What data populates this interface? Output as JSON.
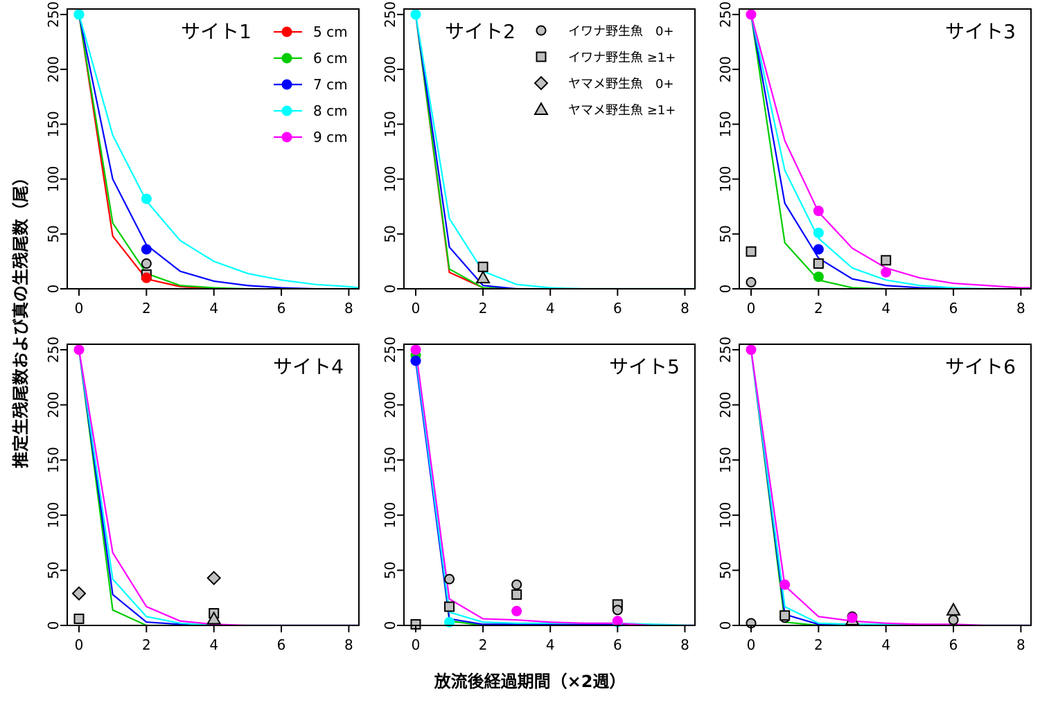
{
  "chart_data": {
    "type": "line",
    "xlabel": "放流後経過期間（×2週）",
    "ylabel": "推定生残尾数および真の生残尾数（尾）",
    "xlim": [
      0,
      8.3
    ],
    "ylim": [
      0,
      255
    ],
    "xticks": [
      "0",
      "2",
      "4",
      "6",
      "8"
    ],
    "yticks": [
      "0",
      "50",
      "100",
      "150",
      "200",
      "250"
    ],
    "size_series": [
      {
        "name": "5 cm",
        "color": "#ff0000"
      },
      {
        "name": "6 cm",
        "color": "#00cc00"
      },
      {
        "name": "7 cm",
        "color": "#0000ff"
      },
      {
        "name": "8 cm",
        "color": "#00ffff"
      },
      {
        "name": "9 cm",
        "color": "#ff00ff"
      }
    ],
    "wild_legend": [
      {
        "name": "イワナ野生魚　0+",
        "shape": "circle"
      },
      {
        "name": "イワナ野生魚 ≥1+",
        "shape": "square"
      },
      {
        "name": "ヤマメ野生魚　0+",
        "shape": "diamond"
      },
      {
        "name": "ヤマメ野生魚 ≥1+",
        "shape": "triangle"
      }
    ],
    "panels": [
      {
        "title": "サイト1",
        "series": [
          {
            "name": "5 cm",
            "x": [
              0,
              1,
              2,
              3,
              4
            ],
            "y": [
              250,
              48,
              9,
              2,
              0
            ]
          },
          {
            "name": "6 cm",
            "x": [
              0,
              1,
              2,
              3,
              4,
              5
            ],
            "y": [
              250,
              60,
              14,
              3,
              1,
              0
            ]
          },
          {
            "name": "7 cm",
            "x": [
              0,
              1,
              2,
              3,
              4,
              5,
              6,
              7,
              8.3
            ],
            "y": [
              250,
              100,
              40,
              16,
              7,
              3,
              1,
              0,
              0
            ]
          },
          {
            "name": "8 cm",
            "x": [
              0,
              1,
              2,
              3,
              4,
              5,
              6,
              7,
              8,
              8.3
            ],
            "y": [
              250,
              140,
              80,
              44,
              25,
              14,
              8,
              4,
              2,
              1
            ]
          }
        ],
        "points": [
          {
            "series": "5 cm",
            "x": 2,
            "y": 10
          },
          {
            "series": "6 cm",
            "x": 0,
            "y": 250
          },
          {
            "series": "7 cm",
            "x": 2,
            "y": 36
          },
          {
            "series": "8 cm",
            "x": 0,
            "y": 250
          },
          {
            "series": "8 cm",
            "x": 2,
            "y": 82
          }
        ],
        "wild": [
          {
            "shape": "circle",
            "x": 2,
            "y": 23
          },
          {
            "shape": "square",
            "x": 2,
            "y": 13
          }
        ]
      },
      {
        "title": "サイト2",
        "series": [
          {
            "name": "5 cm",
            "x": [
              0,
              1,
              2,
              3
            ],
            "y": [
              250,
              15,
              1,
              0
            ]
          },
          {
            "name": "6 cm",
            "x": [
              0,
              1,
              2,
              3
            ],
            "y": [
              250,
              18,
              1,
              0
            ]
          },
          {
            "name": "7 cm",
            "x": [
              0,
              1,
              2,
              3,
              4,
              8.3
            ],
            "y": [
              250,
              38,
              3,
              0,
              0,
              0
            ]
          },
          {
            "name": "8 cm",
            "x": [
              0,
              1,
              2,
              3,
              4,
              5,
              8.3
            ],
            "y": [
              250,
              64,
              16,
              4,
              1,
              0,
              0
            ]
          }
        ],
        "points": [
          {
            "series": "8 cm",
            "x": 0,
            "y": 250
          }
        ],
        "wild": [
          {
            "shape": "square",
            "x": 2,
            "y": 20
          },
          {
            "shape": "triangle",
            "x": 2,
            "y": 10
          }
        ]
      },
      {
        "title": "サイト3",
        "series": [
          {
            "name": "6 cm",
            "x": [
              0,
              1,
              2,
              3,
              4
            ],
            "y": [
              250,
              42,
              8,
              1,
              0
            ]
          },
          {
            "name": "7 cm",
            "x": [
              0,
              1,
              2,
              3,
              4,
              5,
              6,
              7,
              8.3
            ],
            "y": [
              250,
              78,
              28,
              9,
              3,
              1,
              0,
              0,
              0
            ]
          },
          {
            "name": "8 cm",
            "x": [
              0,
              1,
              2,
              3,
              4,
              5,
              6,
              7,
              8.3
            ],
            "y": [
              250,
              108,
              46,
              19,
              8,
              3,
              1,
              0,
              0
            ]
          },
          {
            "name": "9 cm",
            "x": [
              0,
              1,
              2,
              3,
              4,
              5,
              6,
              7,
              8,
              8.3
            ],
            "y": [
              250,
              135,
              70,
              37,
              19,
              10,
              5,
              3,
              1,
              1
            ]
          }
        ],
        "points": [
          {
            "series": "6 cm",
            "x": 2,
            "y": 11
          },
          {
            "series": "7 cm",
            "x": 2,
            "y": 36
          },
          {
            "series": "8 cm",
            "x": 2,
            "y": 51
          },
          {
            "series": "9 cm",
            "x": 0,
            "y": 250
          },
          {
            "series": "9 cm",
            "x": 2,
            "y": 71
          },
          {
            "series": "9 cm",
            "x": 4,
            "y": 15
          }
        ],
        "wild": [
          {
            "shape": "circle",
            "x": 0,
            "y": 6
          },
          {
            "shape": "square",
            "x": 0,
            "y": 34
          },
          {
            "shape": "square",
            "x": 2,
            "y": 23
          },
          {
            "shape": "square",
            "x": 4,
            "y": 26
          }
        ]
      },
      {
        "title": "サイト4",
        "series": [
          {
            "name": "6 cm",
            "x": [
              0,
              1,
              2,
              3,
              8.3
            ],
            "y": [
              250,
              14,
              0,
              0,
              0
            ]
          },
          {
            "name": "7 cm",
            "x": [
              0,
              1,
              2,
              3,
              4,
              8.3
            ],
            "y": [
              250,
              28,
              3,
              1,
              0,
              0
            ]
          },
          {
            "name": "8 cm",
            "x": [
              0,
              1,
              2,
              3,
              4,
              8.3
            ],
            "y": [
              250,
              42,
              8,
              2,
              0,
              0
            ]
          },
          {
            "name": "9 cm",
            "x": [
              0,
              1,
              2,
              3,
              4,
              5,
              8.3
            ],
            "y": [
              250,
              66,
              17,
              4,
              1,
              0,
              0
            ]
          }
        ],
        "points": [
          {
            "series": "9 cm",
            "x": 0,
            "y": 250
          }
        ],
        "wild": [
          {
            "shape": "diamond",
            "x": 0,
            "y": 29
          },
          {
            "shape": "square",
            "x": 0,
            "y": 6
          },
          {
            "shape": "diamond",
            "x": 4,
            "y": 43
          },
          {
            "shape": "square",
            "x": 4,
            "y": 11
          },
          {
            "shape": "triangle",
            "x": 4,
            "y": 6
          }
        ]
      },
      {
        "title": "サイト5",
        "series": [
          {
            "name": "6 cm",
            "x": [
              0,
              1,
              2,
              3,
              8.3
            ],
            "y": [
              245,
              4,
              0,
              0,
              0
            ]
          },
          {
            "name": "7 cm",
            "x": [
              0,
              1,
              2,
              3,
              4,
              6,
              8.3
            ],
            "y": [
              240,
              6,
              1,
              1,
              1,
              1,
              0
            ]
          },
          {
            "name": "8 cm",
            "x": [
              0,
              1,
              2,
              3,
              4,
              6,
              8.3
            ],
            "y": [
              245,
              12,
              3,
              2,
              2,
              2,
              0
            ]
          },
          {
            "name": "9 cm",
            "x": [
              0,
              1,
              2,
              3,
              4,
              5,
              6,
              7,
              8.3
            ],
            "y": [
              250,
              24,
              6,
              5,
              3,
              2,
              2,
              0,
              0
            ]
          }
        ],
        "points": [
          {
            "series": "6 cm",
            "x": 0,
            "y": 245
          },
          {
            "series": "7 cm",
            "x": 0,
            "y": 240
          },
          {
            "series": "8 cm",
            "x": 1,
            "y": 3
          },
          {
            "series": "8 cm",
            "x": 6,
            "y": 3
          },
          {
            "series": "9 cm",
            "x": 0,
            "y": 250
          },
          {
            "series": "9 cm",
            "x": 3,
            "y": 13
          },
          {
            "series": "9 cm",
            "x": 6,
            "y": 4
          }
        ],
        "wild": [
          {
            "shape": "square",
            "x": 0,
            "y": 1
          },
          {
            "shape": "circle",
            "x": 1,
            "y": 42
          },
          {
            "shape": "square",
            "x": 1,
            "y": 17
          },
          {
            "shape": "circle",
            "x": 3,
            "y": 37
          },
          {
            "shape": "square",
            "x": 3,
            "y": 28
          },
          {
            "shape": "square",
            "x": 6,
            "y": 19
          },
          {
            "shape": "circle",
            "x": 6,
            "y": 14
          }
        ]
      },
      {
        "title": "サイト6",
        "series": [
          {
            "name": "6 cm",
            "x": [
              0,
              1,
              2,
              3,
              8.3
            ],
            "y": [
              250,
              3,
              0,
              0,
              0
            ]
          },
          {
            "name": "7 cm",
            "x": [
              0,
              1,
              2,
              3,
              4,
              8.3
            ],
            "y": [
              250,
              10,
              1,
              0,
              0,
              0
            ]
          },
          {
            "name": "8 cm",
            "x": [
              0,
              1,
              2,
              3,
              4,
              6,
              7,
              8.3
            ],
            "y": [
              250,
              17,
              2,
              1,
              1,
              1,
              0,
              0
            ]
          },
          {
            "name": "9 cm",
            "x": [
              0,
              1,
              2,
              3,
              4,
              5,
              6,
              7,
              8.3
            ],
            "y": [
              250,
              36,
              8,
              4,
              2,
              1,
              1,
              0,
              0
            ]
          }
        ],
        "points": [
          {
            "series": "9 cm",
            "x": 0,
            "y": 250
          },
          {
            "series": "9 cm",
            "x": 1,
            "y": 37
          },
          {
            "series": "9 cm",
            "x": 3,
            "y": 7
          }
        ],
        "wild": [
          {
            "shape": "circle",
            "x": 0,
            "y": 2
          },
          {
            "shape": "circle",
            "x": 1,
            "y": 7
          },
          {
            "shape": "square",
            "x": 1,
            "y": 9
          },
          {
            "shape": "circle",
            "x": 3,
            "y": 8
          },
          {
            "shape": "triangle",
            "x": 3,
            "y": 5
          },
          {
            "shape": "triangle",
            "x": 6,
            "y": 14
          },
          {
            "shape": "circle",
            "x": 6,
            "y": 5
          }
        ]
      }
    ]
  }
}
